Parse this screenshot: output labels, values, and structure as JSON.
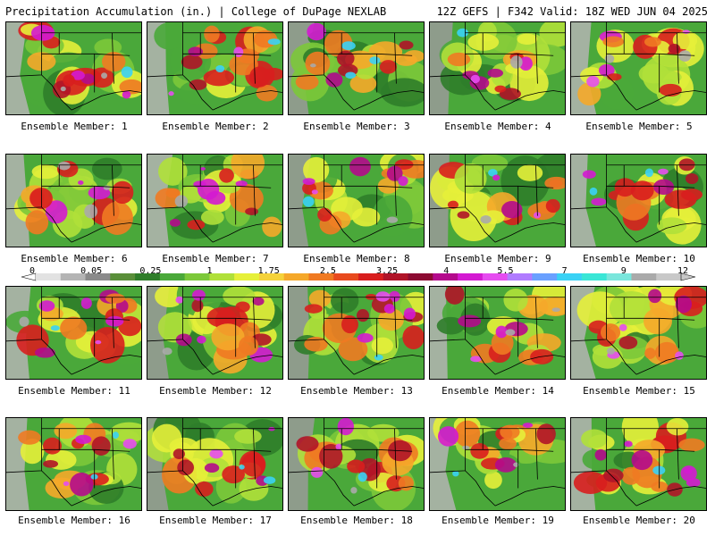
{
  "header": {
    "left": "Precipitation Accumulation (in.) | College of DuPage NEXLAB",
    "right": "12Z GEFS | F342 Valid: 18Z WED JUN 04 2025"
  },
  "caption_prefix": "Ensemble Member:",
  "members": [
    "1",
    "2",
    "3",
    "4",
    "5",
    "6",
    "7",
    "8",
    "9",
    "10",
    "11",
    "12",
    "13",
    "14",
    "15",
    "16",
    "17",
    "18",
    "19",
    "20"
  ],
  "legend": {
    "labels": [
      "0",
      "0.05",
      "0.25",
      "1",
      "1.75",
      "2.5",
      "3.25",
      "4",
      "5.5",
      "7",
      "9",
      "12"
    ],
    "colors": [
      "#e2e2e2",
      "#b4b4b4",
      "#8a8a8a",
      "#5a8f3a",
      "#2f7d2a",
      "#4aa83a",
      "#7cc83a",
      "#b0e03a",
      "#e6f03a",
      "#f5d23a",
      "#f5a82a",
      "#f07a22",
      "#e84a1e",
      "#d81e1e",
      "#b01428",
      "#8c0a32",
      "#b40a8c",
      "#d41ad2",
      "#e64cf0",
      "#b07cff",
      "#6aa0ff",
      "#3ad2f5",
      "#3ae6d6",
      "#7ae6dc",
      "#aaaaaa",
      "#c8c8c8"
    ]
  }
}
